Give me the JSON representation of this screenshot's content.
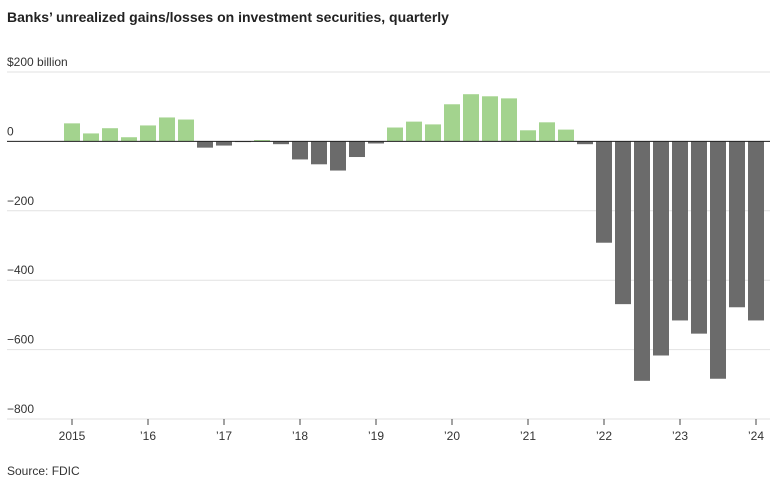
{
  "chart_data": {
    "type": "bar",
    "title": "Banks’ unrealized gains/losses on investment securities, quarterly",
    "source": "Source: FDIC",
    "categories": [
      "2015",
      null,
      null,
      null,
      "’16",
      null,
      null,
      null,
      "’17",
      null,
      null,
      null,
      "’18",
      null,
      null,
      null,
      "’19",
      null,
      null,
      null,
      "’20",
      null,
      null,
      null,
      "’21",
      null,
      null,
      null,
      "’22",
      null,
      null,
      null,
      "’23",
      null,
      null,
      null,
      "’24"
    ],
    "values": [
      52,
      23,
      38,
      12,
      46,
      69,
      63,
      -18,
      -12,
      -2,
      4,
      -8,
      -52,
      -66,
      -84,
      -45,
      -6,
      40,
      57,
      49,
      107,
      136,
      130,
      124,
      32,
      55,
      34,
      -8,
      -292,
      -469,
      -690,
      -617,
      -516,
      -554,
      -684,
      -478,
      -516
    ],
    "positive_color": "#a3d38e",
    "negative_color": "#6b6b6b",
    "ylim": [
      -800,
      200
    ],
    "yticks": [
      {
        "value": -800,
        "label": "−800"
      },
      {
        "value": -600,
        "label": "−600"
      },
      {
        "value": -400,
        "label": "−400"
      },
      {
        "value": -200,
        "label": "−200"
      },
      0,
      {
        "value": 200,
        "label": "$200 billion"
      }
    ],
    "grid": true
  }
}
